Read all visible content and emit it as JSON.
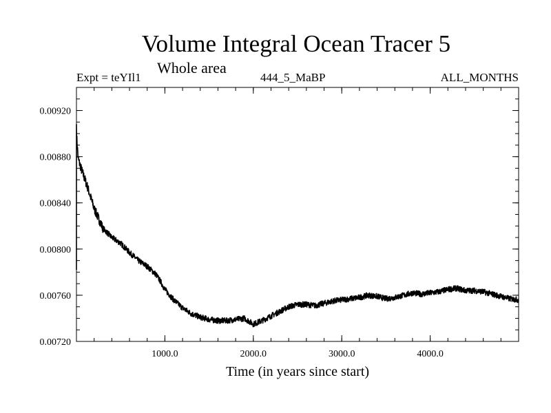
{
  "chart_data": {
    "type": "line",
    "title": "Volume Integral Ocean Tracer 5",
    "subtitle": "Whole area",
    "experiment": "Expt = teYIl1",
    "run_label": "444_5_MaBP",
    "months_label": "ALL_MONTHS",
    "xlabel": "Time (in years since start)",
    "ylabel": "",
    "xlim": [
      0,
      5000
    ],
    "ylim": [
      0.0072,
      0.0094
    ],
    "x_ticks": [
      1000,
      2000,
      3000,
      4000
    ],
    "x_tick_labels": [
      "1000.0",
      "2000.0",
      "3000.0",
      "4000.0"
    ],
    "y_ticks": [
      0.0072,
      0.0076,
      0.008,
      0.0084,
      0.0088,
      0.0092
    ],
    "y_tick_labels": [
      "0.00720",
      "0.00760",
      "0.00800",
      "0.00840",
      "0.00880",
      "0.00920"
    ],
    "grid": false,
    "series": [
      {
        "name": "Volume Integral Ocean Tracer 5",
        "noise_amplitude": 2.5e-05,
        "x": [
          0,
          20,
          60,
          120,
          200,
          300,
          400,
          500,
          600,
          700,
          800,
          900,
          950,
          1000,
          1100,
          1200,
          1300,
          1400,
          1500,
          1600,
          1700,
          1800,
          1900,
          2000,
          2100,
          2200,
          2300,
          2400,
          2500,
          2600,
          2700,
          2800,
          2900,
          3000,
          3100,
          3200,
          3300,
          3400,
          3500,
          3600,
          3700,
          3800,
          3900,
          4000,
          4100,
          4200,
          4300,
          4400,
          4500,
          4600,
          4700,
          4800,
          4900,
          5000
        ],
        "values": [
          0.009,
          0.00878,
          0.00868,
          0.00855,
          0.00835,
          0.00818,
          0.0081,
          0.00805,
          0.00797,
          0.0079,
          0.00785,
          0.00778,
          0.00772,
          0.00765,
          0.00756,
          0.00749,
          0.00744,
          0.00741,
          0.00739,
          0.00738,
          0.00738,
          0.00739,
          0.0074,
          0.00735,
          0.00738,
          0.00742,
          0.00746,
          0.0075,
          0.00752,
          0.00752,
          0.00751,
          0.00753,
          0.00755,
          0.00756,
          0.00757,
          0.00758,
          0.0076,
          0.00759,
          0.00757,
          0.00758,
          0.0076,
          0.00762,
          0.00761,
          0.00762,
          0.00763,
          0.00765,
          0.00766,
          0.00764,
          0.00764,
          0.00763,
          0.00761,
          0.00759,
          0.00757,
          0.00756
        ]
      }
    ]
  }
}
